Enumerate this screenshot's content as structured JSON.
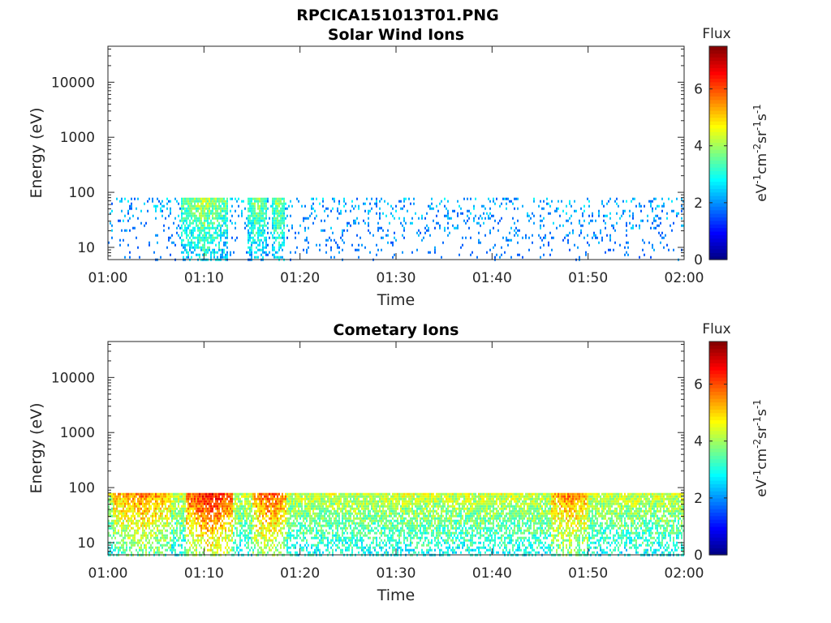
{
  "figure": {
    "title": "RPCICA151013T01.PNG"
  },
  "chart_data": [
    {
      "type": "heatmap",
      "title": "Solar Wind Ions",
      "xlabel": "Time",
      "ylabel": "Energy (eV)",
      "x_tick_labels": [
        "01:00",
        "01:10",
        "01:20",
        "01:30",
        "01:40",
        "01:50",
        "02:00"
      ],
      "y_tick_labels": [
        "10",
        "100",
        "1000",
        "10000"
      ],
      "y_scale": "log",
      "ylim": [
        6,
        45000
      ],
      "xlim": [
        "01:00",
        "02:00"
      ],
      "grid": false,
      "colorbar": {
        "label": "Flux",
        "unit": "eV-1cm-2sr-1s-1",
        "ticks": [
          "0",
          "2",
          "4",
          "6"
        ],
        "range": [
          0,
          7.5
        ],
        "colormap": "jet"
      },
      "active_band_eV": [
        6,
        80
      ],
      "bursts": [
        {
          "start_min": 7.5,
          "end_min": 12.5,
          "level": 4.2
        },
        {
          "start_min": 14.5,
          "end_min": 16.5,
          "level": 4.0
        },
        {
          "start_min": 17.0,
          "end_min": 18.3,
          "level": 4.1
        }
      ],
      "background_level": 2.2
    },
    {
      "type": "heatmap",
      "title": "Cometary Ions",
      "xlabel": "Time",
      "ylabel": "Energy (eV)",
      "x_tick_labels": [
        "01:00",
        "01:10",
        "01:20",
        "01:30",
        "01:40",
        "01:50",
        "02:00"
      ],
      "y_tick_labels": [
        "10",
        "100",
        "1000",
        "10000"
      ],
      "y_scale": "log",
      "ylim": [
        6,
        45000
      ],
      "xlim": [
        "01:00",
        "02:00"
      ],
      "grid": false,
      "colorbar": {
        "label": "Flux",
        "unit": "eV-1cm-2sr-1s-1",
        "ticks": [
          "0",
          "2",
          "4",
          "6"
        ],
        "range": [
          0,
          7.5
        ],
        "colormap": "jet"
      },
      "active_band_eV": [
        6,
        80
      ],
      "bursts": [
        {
          "start_min": 0.5,
          "end_min": 6.5,
          "level": 5.6
        },
        {
          "start_min": 8.0,
          "end_min": 13.0,
          "level": 6.6
        },
        {
          "start_min": 15.0,
          "end_min": 18.5,
          "level": 6.0
        },
        {
          "start_min": 46.0,
          "end_min": 50.0,
          "level": 5.6
        }
      ],
      "background_level": 4.3
    }
  ]
}
